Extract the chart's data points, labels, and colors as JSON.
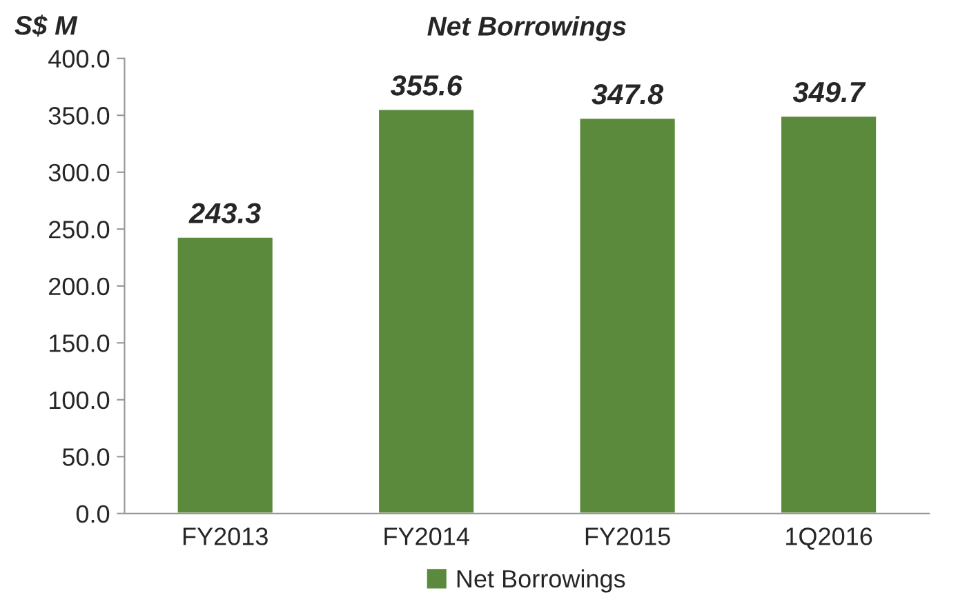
{
  "chart_data": {
    "type": "bar",
    "title": "Net Borrowings",
    "ylabel": "S$ M",
    "categories": [
      "FY2013",
      "FY2014",
      "FY2015",
      "1Q2016"
    ],
    "series": [
      {
        "name": "Net Borrowings",
        "color": "#5b8a3c",
        "values": [
          243.3,
          355.6,
          347.8,
          349.7
        ]
      }
    ],
    "ylim": [
      0,
      400
    ],
    "yticks": [
      {
        "value": 0,
        "label": "0.0"
      },
      {
        "value": 50,
        "label": "50.0"
      },
      {
        "value": 100,
        "label": "100.0"
      },
      {
        "value": 150,
        "label": "150.0"
      },
      {
        "value": 200,
        "label": "200.0"
      },
      {
        "value": 250,
        "label": "250.0"
      },
      {
        "value": 300,
        "label": "300.0"
      },
      {
        "value": 350,
        "label": "350.0"
      },
      {
        "value": 400,
        "label": "400.0"
      }
    ],
    "data_labels": true,
    "grid": false,
    "legend": "bottom"
  }
}
